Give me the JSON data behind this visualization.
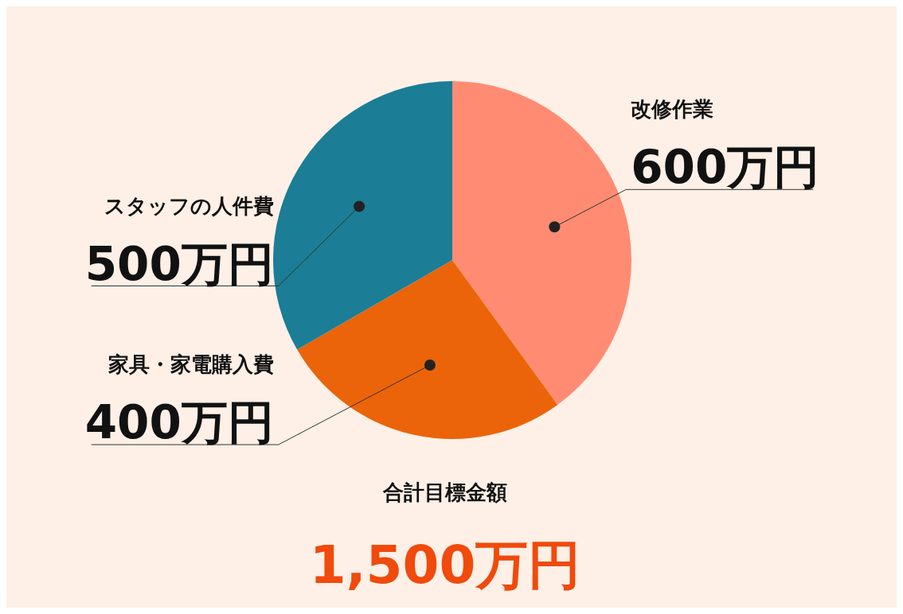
{
  "chart_data": {
    "type": "pie",
    "categories": [
      "改修作業",
      "家具・家電購入費",
      "スタッフの人件費"
    ],
    "values": [
      600,
      400,
      500
    ],
    "value_labels": [
      "600万円",
      "400万円",
      "500万円"
    ],
    "colors": [
      "#ff8c72",
      "#eb6409",
      "#1b7d96"
    ],
    "legend": false,
    "annotations": [
      "合計目標金額",
      "1,500万円"
    ]
  }
}
